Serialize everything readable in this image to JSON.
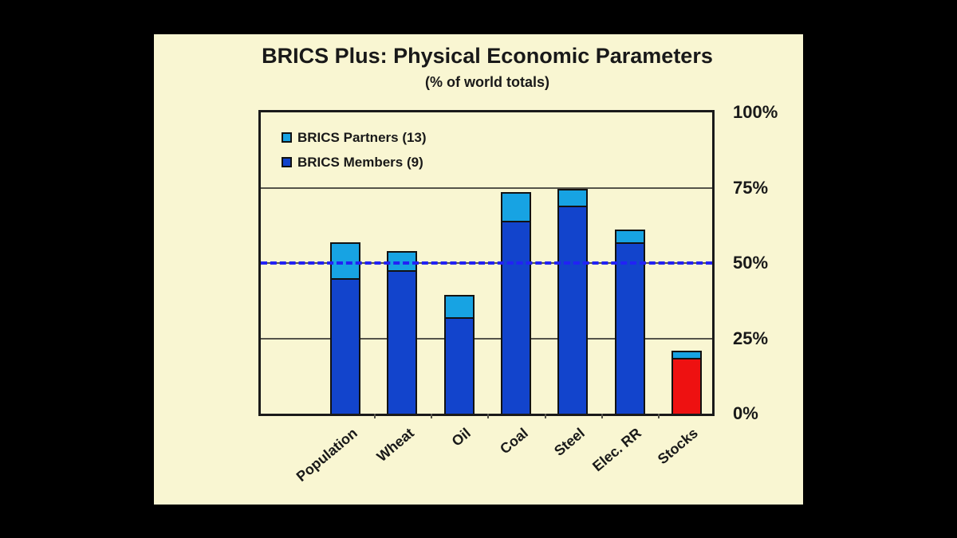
{
  "window": {
    "background": "#000000",
    "slide_background": "#f9f6d2"
  },
  "slide": {
    "title": "BRICS Plus: Physical Economic Parameters",
    "subtitle": "(% of world totals)"
  },
  "legend": {
    "items": [
      {
        "label": "BRICS Partners (13)",
        "color": "#17a3e3"
      },
      {
        "label": "BRICS Members (9)",
        "color": "#1244cc"
      }
    ]
  },
  "colors": {
    "members_bar": "#1244cc",
    "partners_bar": "#17a3e3",
    "stocks_highlight": "#ee1111",
    "reference_line": "#2222f5",
    "gridline": "#55544a",
    "plot_border": "#1a1a1a",
    "text": "#191919"
  },
  "chart_data": {
    "type": "bar",
    "stacked": true,
    "title": "BRICS Plus: Physical Economic Parameters",
    "subtitle": "(% of world totals)",
    "categories": [
      "Population",
      "Wheat",
      "Oil",
      "Coal",
      "Steel",
      "Elec. RR",
      "Stocks"
    ],
    "series": [
      {
        "name": "BRICS Members (9)",
        "values": [
          45,
          47.5,
          32,
          64,
          69,
          57,
          18.5
        ],
        "colors": [
          "#1244cc",
          "#1244cc",
          "#1244cc",
          "#1244cc",
          "#1244cc",
          "#1244cc",
          "#ee1111"
        ]
      },
      {
        "name": "BRICS Partners (13)",
        "values": [
          12,
          6.5,
          7.5,
          9.5,
          5.5,
          4,
          2.5
        ],
        "color": "#17a3e3"
      }
    ],
    "totals": [
      57,
      54,
      39.5,
      73.5,
      74.5,
      61,
      21
    ],
    "ylim": [
      0,
      100
    ],
    "yticks": [
      {
        "label": "100%",
        "value": 100
      },
      {
        "label": "75%",
        "value": 75
      },
      {
        "label": "50%",
        "value": 50
      },
      {
        "label": "25%",
        "value": 25
      },
      {
        "label": "0%",
        "value": 0
      }
    ],
    "gridline_values": [
      25,
      50,
      75
    ],
    "reference_line": {
      "value": 50,
      "style": "dashed",
      "color": "#2222f5"
    },
    "legend_position": "top-left-inside",
    "grid": true
  }
}
